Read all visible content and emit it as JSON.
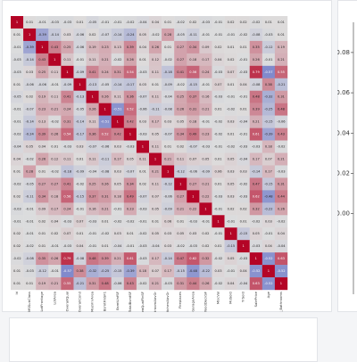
{
  "chart_data": [
    {
      "type": "heatmap",
      "categories": [
        "Id",
        "MSSubClass",
        "LotFrontage",
        "LotArea",
        "OverallQual",
        "OverallCond",
        "MasVnrArea",
        "BsmtFinSF1",
        "BsmtUnfSF",
        "TotalBsmtSF",
        "LowQualFinSF",
        "BedroomAbvGr",
        "KitchenAbvGr",
        "Fireplaces",
        "GarageArea",
        "WoodDeckSF",
        "MiscVal",
        "MoSold",
        "YrSold",
        "SalePrice",
        "Age",
        "Total_Bathrooms"
      ],
      "colors": [
        "#3b4cc0",
        "#dddddd",
        "#b40426"
      ],
      "zlim": [
        -1,
        1
      ],
      "values": [
        [
          1,
          0.01,
          -0.01,
          -0.03,
          -0.03,
          0.01,
          -0.05,
          -0.01,
          -0.01,
          -0.02,
          -0.04,
          0.04,
          0.01,
          -0.02,
          0.02,
          -0.03,
          -0.01,
          0.02,
          0.02,
          -0.02,
          0.01,
          0.01
        ],
        [
          0.01,
          1,
          -0.39,
          -0.14,
          0.03,
          -0.06,
          0.02,
          -0.07,
          -0.14,
          -0.24,
          0.05,
          -0.02,
          0.28,
          -0.05,
          -0.11,
          -0.01,
          -0.01,
          -0.01,
          -0.02,
          -0.08,
          -0.03,
          0.01
        ],
        [
          -0.01,
          -0.39,
          1,
          0.43,
          0.25,
          -0.06,
          0.19,
          0.23,
          0.13,
          0.39,
          0.04,
          0.26,
          0.01,
          0.27,
          0.34,
          0.09,
          0.02,
          0.01,
          0.01,
          0.35,
          -0.12,
          0.19
        ],
        [
          -0.03,
          -0.14,
          0.43,
          1,
          0.11,
          -0.01,
          0.11,
          0.21,
          -0.02,
          0.26,
          0.01,
          0.12,
          -0.02,
          0.27,
          0.18,
          0.17,
          0.04,
          0.02,
          -0.01,
          0.26,
          -0.01,
          0.21
        ],
        [
          -0.03,
          0.03,
          0.25,
          0.11,
          1,
          -0.09,
          0.41,
          0.24,
          0.31,
          0.54,
          -0.03,
          0.11,
          -0.18,
          0.41,
          0.56,
          0.24,
          -0.03,
          0.07,
          -0.03,
          0.79,
          -0.57,
          0.55
        ],
        [
          0.01,
          -0.06,
          -0.06,
          -0.01,
          -0.09,
          1,
          -0.13,
          -0.05,
          -0.14,
          -0.17,
          0.03,
          0.01,
          -0.09,
          -0.02,
          -0.15,
          -0.01,
          0.07,
          0.01,
          0.04,
          -0.08,
          0.38,
          -0.21
        ],
        [
          -0.05,
          0.02,
          0.19,
          0.11,
          0.41,
          -0.13,
          1,
          0.26,
          0.11,
          0.36,
          -0.07,
          0.11,
          -0.04,
          0.25,
          0.37,
          0.16,
          -0.03,
          -0.01,
          -0.01,
          0.48,
          -0.32,
          0.31
        ],
        [
          -0.01,
          -0.07,
          0.23,
          0.21,
          0.24,
          -0.05,
          0.26,
          1,
          -0.51,
          0.52,
          -0.06,
          -0.11,
          -0.08,
          0.26,
          0.31,
          0.21,
          0.01,
          -0.02,
          0.01,
          0.39,
          -0.25,
          0.48
        ],
        [
          -0.01,
          -0.14,
          0.13,
          -0.02,
          0.31,
          -0.14,
          0.11,
          -0.51,
          1,
          0.42,
          0.03,
          0.17,
          0.03,
          0.05,
          0.18,
          -0.01,
          -0.02,
          0.03,
          -0.04,
          0.21,
          -0.15,
          -0.06
        ],
        [
          -0.02,
          -0.24,
          0.39,
          0.26,
          0.54,
          -0.17,
          0.36,
          0.52,
          0.42,
          1,
          -0.03,
          0.05,
          -0.07,
          0.34,
          0.49,
          0.23,
          -0.02,
          0.01,
          -0.01,
          0.61,
          -0.39,
          0.43
        ],
        [
          -0.04,
          0.05,
          0.04,
          0.01,
          -0.03,
          0.03,
          -0.07,
          -0.06,
          0.03,
          -0.03,
          1,
          0.11,
          0.01,
          0.02,
          -0.07,
          -0.03,
          -0.01,
          -0.02,
          -0.03,
          -0.03,
          0.18,
          -0.02
        ],
        [
          0.04,
          -0.02,
          0.26,
          0.12,
          0.11,
          0.01,
          0.11,
          -0.11,
          0.17,
          0.05,
          0.11,
          1,
          0.21,
          0.11,
          0.07,
          0.05,
          0.01,
          0.05,
          -0.04,
          0.17,
          0.07,
          0.21
        ],
        [
          0.01,
          0.28,
          0.01,
          -0.02,
          -0.18,
          -0.09,
          -0.04,
          -0.08,
          0.03,
          -0.07,
          0.01,
          0.21,
          1,
          -0.12,
          -0.06,
          -0.09,
          0.06,
          0.03,
          0.03,
          -0.14,
          0.17,
          -0.03
        ],
        [
          -0.02,
          -0.05,
          0.27,
          0.27,
          0.41,
          -0.02,
          0.25,
          0.26,
          0.05,
          0.34,
          0.02,
          0.11,
          -0.12,
          1,
          0.27,
          0.21,
          0.01,
          0.05,
          -0.02,
          0.47,
          -0.15,
          0.31
        ],
        [
          0.02,
          -0.11,
          0.34,
          0.18,
          0.56,
          -0.15,
          0.37,
          0.31,
          0.18,
          0.49,
          -0.07,
          0.07,
          -0.06,
          0.27,
          1,
          0.22,
          -0.03,
          0.03,
          -0.03,
          0.62,
          -0.48,
          0.44
        ],
        [
          -0.03,
          -0.01,
          0.09,
          0.17,
          0.24,
          -0.01,
          0.16,
          0.21,
          -0.01,
          0.23,
          -0.03,
          0.05,
          -0.09,
          0.21,
          0.22,
          1,
          -0.01,
          0.02,
          0.02,
          0.32,
          -0.22,
          0.26
        ],
        [
          -0.01,
          -0.01,
          0.02,
          0.04,
          -0.03,
          0.07,
          -0.03,
          0.01,
          -0.02,
          -0.02,
          -0.01,
          0.01,
          0.06,
          0.01,
          -0.03,
          -0.01,
          1,
          -0.01,
          0.01,
          -0.02,
          0.03,
          -0.02
        ],
        [
          0.02,
          -0.01,
          0.01,
          0.02,
          0.07,
          0.01,
          -0.01,
          -0.02,
          0.03,
          0.01,
          -0.02,
          0.05,
          0.03,
          0.05,
          0.03,
          0.02,
          -0.01,
          1,
          -0.15,
          0.05,
          -0.01,
          0.04
        ],
        [
          0.02,
          -0.02,
          0.01,
          -0.01,
          -0.03,
          0.04,
          -0.01,
          0.01,
          -0.04,
          -0.01,
          -0.03,
          -0.04,
          0.03,
          -0.02,
          -0.03,
          0.02,
          0.01,
          -0.15,
          1,
          -0.03,
          0.04,
          -0.04
        ],
        [
          -0.02,
          -0.08,
          0.35,
          0.26,
          0.79,
          -0.08,
          0.48,
          0.39,
          0.21,
          0.61,
          -0.03,
          0.17,
          -0.14,
          0.47,
          0.62,
          0.32,
          -0.02,
          0.05,
          -0.03,
          1,
          -0.52,
          0.63
        ],
        [
          0.01,
          -0.03,
          -0.12,
          -0.01,
          -0.57,
          0.38,
          -0.32,
          -0.25,
          -0.15,
          -0.39,
          0.18,
          0.07,
          0.17,
          -0.15,
          -0.48,
          -0.22,
          0.03,
          -0.01,
          0.04,
          -0.52,
          1,
          -0.52
        ],
        [
          0.01,
          0.01,
          0.19,
          0.21,
          0.55,
          -0.21,
          0.31,
          0.48,
          -0.06,
          0.43,
          -0.02,
          0.21,
          -0.03,
          0.31,
          0.44,
          0.26,
          -0.02,
          0.04,
          -0.04,
          0.63,
          -0.52,
          1
        ]
      ]
    },
    {
      "type": "line",
      "ylim": [
        -0.04,
        0.095
      ],
      "yticks": [
        {
          "value": 0,
          "label": "0.00"
        },
        0.02,
        0.04,
        0.06,
        0.08
      ]
    }
  ]
}
